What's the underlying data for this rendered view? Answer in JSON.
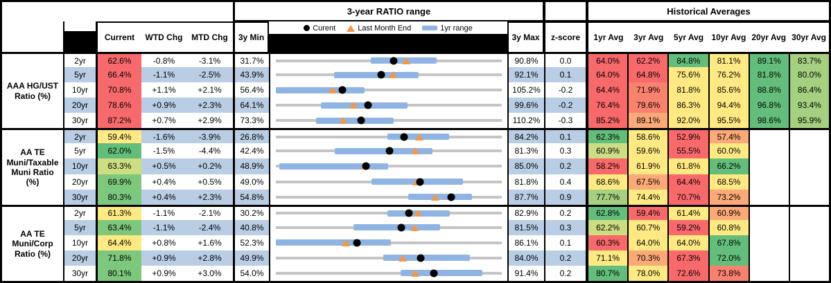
{
  "header": {
    "ratio_range_title": "3-year RATIO range",
    "historical_title": "Historical Averages",
    "legend": {
      "current": "Curent",
      "last_month_end": "Last Month End",
      "one_yr_range": "1yr range"
    },
    "columns": {
      "current": "Current",
      "wtd": "WTD Chg",
      "mtd": "MTD Chg",
      "min": "3y Min",
      "max": "3y Max",
      "zscore": "z-score",
      "avgs": [
        "1yr Avg",
        "3yr Avg",
        "5yr Avg",
        "10yr Avg",
        "20yr Avg",
        "30yr Avg"
      ]
    }
  },
  "colors": {
    "red": "#F8696B",
    "salmon": "#F9826F",
    "orange": "#FBA977",
    "yellow": "#FFE983",
    "yelgreen": "#CDDD82",
    "ltgreen": "#A5D07F",
    "green": "#63BE7B",
    "green2": "#7CC87D",
    "stripe": "#B9CDE4",
    "white": "#FFFFFF",
    "bar_blue": "#8DB4E2",
    "line_gray": "#C4C4C4",
    "marker_orange": "#F79646",
    "marker_black": "#000000"
  },
  "chart_data": {
    "type": "table",
    "title": "3-year RATIO range",
    "legend": [
      "Curent",
      "Last Month End",
      "1yr range"
    ],
    "columns": [
      "Current",
      "WTD Chg",
      "MTD Chg",
      "3y Min",
      "3y Max",
      "z-score",
      "1yr Avg",
      "3yr Avg",
      "5yr Avg",
      "10yr Avg",
      "20yr Avg",
      "30yr Avg"
    ],
    "range_chart_note": "each row is a horizontal range plot scaled from its own 3y Min to 3y Max; black dot = current, orange triangle = last month end, blue bar = 1yr range",
    "groups": [
      {
        "label": "AAA HG/UST\nRatio (%)",
        "rows": [
          {
            "tenor": "2yr",
            "current": "62.6%",
            "cc": "red",
            "wtd": "-0.8%",
            "mtd": "-3.1%",
            "min": "31.7%",
            "max": "90.8%",
            "z": "0.0",
            "avgs": [
              [
                "64.0%",
                "red"
              ],
              [
                "62.2%",
                "red"
              ],
              [
                "84.8%",
                "green"
              ],
              [
                "81.1%",
                "yellow"
              ],
              [
                "89.1%",
                "green"
              ],
              [
                "83.7%",
                "ltgreen"
              ]
            ],
            "range": {
              "min": 31.7,
              "max": 90.8,
              "cur": 62.6,
              "lme": 65.7,
              "bar": [
                56.5,
                73.7
              ]
            }
          },
          {
            "tenor": "5yr",
            "current": "66.4%",
            "cc": "red",
            "wtd": "-1.1%",
            "mtd": "-2.5%",
            "min": "43.9%",
            "max": "92.1%",
            "z": "0.1",
            "avgs": [
              [
                "64.0%",
                "red"
              ],
              [
                "64.8%",
                "red"
              ],
              [
                "75.6%",
                "yellow"
              ],
              [
                "76.2%",
                "yellow"
              ],
              [
                "81.8%",
                "green"
              ],
              [
                "80.0%",
                "ltgreen"
              ]
            ],
            "range": {
              "min": 43.9,
              "max": 92.1,
              "cur": 66.4,
              "lme": 68.9,
              "bar": [
                56.3,
                74.3
              ]
            }
          },
          {
            "tenor": "10yr",
            "current": "70.8%",
            "cc": "red",
            "wtd": "+1.1%",
            "mtd": "+2.1%",
            "min": "56.4%",
            "max": "105.2%",
            "z": "-0.2",
            "avgs": [
              [
                "64.4%",
                "red"
              ],
              [
                "71.9%",
                "salmon"
              ],
              [
                "81.8%",
                "yellow"
              ],
              [
                "85.6%",
                "yellow"
              ],
              [
                "88.8%",
                "green"
              ],
              [
                "86.4%",
                "ltgreen"
              ]
            ],
            "range": {
              "min": 56.4,
              "max": 105.2,
              "cur": 70.8,
              "lme": 68.7,
              "bar": [
                56.4,
                75.5
              ]
            }
          },
          {
            "tenor": "20yr",
            "current": "78.6%",
            "cc": "red",
            "wtd": "+0.9%",
            "mtd": "+2.3%",
            "min": "64.1%",
            "max": "99.6%",
            "z": "-0.2",
            "avgs": [
              [
                "76.4%",
                "red"
              ],
              [
                "79.6%",
                "salmon"
              ],
              [
                "86.3%",
                "yellow"
              ],
              [
                "94.4%",
                "yellow"
              ],
              [
                "96.8%",
                "green"
              ],
              [
                "93.4%",
                "ltgreen"
              ]
            ],
            "range": {
              "min": 64.1,
              "max": 99.6,
              "cur": 78.6,
              "lme": 76.3,
              "bar": [
                71.2,
                84.8
              ]
            }
          },
          {
            "tenor": "30yr",
            "current": "87.2%",
            "cc": "red",
            "wtd": "+0.7%",
            "mtd": "+2.9%",
            "min": "73.3%",
            "max": "110.2%",
            "z": "-0.3",
            "avgs": [
              [
                "85.2%",
                "red"
              ],
              [
                "89.1%",
                "orange"
              ],
              [
                "92.0%",
                "yellow"
              ],
              [
                "95.5%",
                "yellow"
              ],
              [
                "98.6%",
                "green"
              ],
              [
                "95.9%",
                "ltgreen"
              ]
            ],
            "range": {
              "min": 73.3,
              "max": 110.2,
              "cur": 87.2,
              "lme": 84.3,
              "bar": [
                79.9,
                92.5
              ]
            }
          }
        ]
      },
      {
        "label": "AA TE\nMuni/Taxable\nMuni Ratio\n(%)",
        "rows": [
          {
            "tenor": "2yr",
            "current": "59.4%",
            "cc": "yellow",
            "wtd": "-1.6%",
            "mtd": "-3.9%",
            "min": "26.8%",
            "max": "84.2%",
            "z": "0.1",
            "avgs": [
              [
                "62.3%",
                "green"
              ],
              [
                "58.6%",
                "yellow"
              ],
              [
                "52.9%",
                "red"
              ],
              [
                "57.4%",
                "orange"
              ]
            ],
            "range": {
              "min": 26.8,
              "max": 84.2,
              "cur": 59.4,
              "lme": 63.3,
              "bar": [
                55.2,
                70.9
              ]
            }
          },
          {
            "tenor": "5yr",
            "current": "62.0%",
            "cc": "green",
            "wtd": "-1.5%",
            "mtd": "-4.4%",
            "min": "42.4%",
            "max": "81.3%",
            "z": "0.3",
            "avgs": [
              [
                "60.9%",
                "yelgreen"
              ],
              [
                "59.6%",
                "yellow"
              ],
              [
                "55.5%",
                "red"
              ],
              [
                "60.0%",
                "yellow"
              ]
            ],
            "range": {
              "min": 42.4,
              "max": 81.3,
              "cur": 62.0,
              "lme": 66.4,
              "bar": [
                52.5,
                69.4
              ]
            }
          },
          {
            "tenor": "10yr",
            "current": "63.3%",
            "cc": "yelgreen",
            "wtd": "+0.5%",
            "mtd": "+0.2%",
            "min": "48.9%",
            "max": "85.0%",
            "z": "0.2",
            "avgs": [
              [
                "58.2%",
                "red"
              ],
              [
                "61.9%",
                "yellow"
              ],
              [
                "61.8%",
                "yellow"
              ],
              [
                "66.2%",
                "green"
              ]
            ],
            "range": {
              "min": 48.9,
              "max": 85.0,
              "cur": 63.3,
              "lme": 63.1,
              "bar": [
                49.4,
                66.8
              ]
            }
          },
          {
            "tenor": "20yr",
            "current": "69.9%",
            "cc": "green2",
            "wtd": "+0.4%",
            "mtd": "+0.5%",
            "min": "49.0%",
            "max": "81.8%",
            "z": "0.4",
            "avgs": [
              [
                "68.6%",
                "yellow"
              ],
              [
                "67.5%",
                "orange"
              ],
              [
                "64.4%",
                "red"
              ],
              [
                "68.5%",
                "yellow"
              ]
            ],
            "range": {
              "min": 49.0,
              "max": 81.8,
              "cur": 69.9,
              "lme": 69.4,
              "bar": [
                62.9,
                76.2
              ]
            }
          },
          {
            "tenor": "30yr",
            "current": "80.3%",
            "cc": "green2",
            "wtd": "+0.4%",
            "mtd": "+2.3%",
            "min": "54.8%",
            "max": "87.7%",
            "z": "0.9",
            "avgs": [
              [
                "77.7%",
                "ltgreen"
              ],
              [
                "74.4%",
                "yellow"
              ],
              [
                "70.7%",
                "red"
              ],
              [
                "73.2%",
                "orange"
              ]
            ],
            "range": {
              "min": 54.8,
              "max": 87.7,
              "cur": 80.3,
              "lme": 78.0,
              "bar": [
                74.1,
                83.4
              ]
            }
          }
        ]
      },
      {
        "label": "AA TE\nMuni/Corp\nRatio (%)",
        "rows": [
          {
            "tenor": "2yr",
            "current": "61.3%",
            "cc": "yellow",
            "wtd": "-1.1%",
            "mtd": "-2.1%",
            "min": "30.2%",
            "max": "82.9%",
            "z": "0.2",
            "avgs": [
              [
                "62.8%",
                "green"
              ],
              [
                "59.4%",
                "red"
              ],
              [
                "61.4%",
                "yellow"
              ],
              [
                "60.9%",
                "orange"
              ]
            ],
            "range": {
              "min": 30.2,
              "max": 82.9,
              "cur": 61.3,
              "lme": 63.4,
              "bar": [
                56.3,
                70.7
              ]
            }
          },
          {
            "tenor": "5yr",
            "current": "63.4%",
            "cc": "green2",
            "wtd": "-1.1%",
            "mtd": "-2.4%",
            "min": "40.8%",
            "max": "81.5%",
            "z": "0.3",
            "avgs": [
              [
                "62.2%",
                "yelgreen"
              ],
              [
                "60.7%",
                "yellow"
              ],
              [
                "59.2%",
                "red"
              ],
              [
                "60.8%",
                "yellow"
              ]
            ],
            "range": {
              "min": 40.8,
              "max": 81.5,
              "cur": 63.4,
              "lme": 65.8,
              "bar": [
                54.8,
                70.4
              ]
            }
          },
          {
            "tenor": "10yr",
            "current": "64.4%",
            "cc": "yellow",
            "wtd": "+0.8%",
            "mtd": "+1.6%",
            "min": "52.3%",
            "max": "86.1%",
            "z": "0.1",
            "avgs": [
              [
                "60.3%",
                "red"
              ],
              [
                "64.0%",
                "yellow"
              ],
              [
                "64.0%",
                "yellow"
              ],
              [
                "67.8%",
                "green"
              ]
            ],
            "range": {
              "min": 52.3,
              "max": 86.1,
              "cur": 64.4,
              "lme": 62.8,
              "bar": [
                52.3,
                69.5
              ]
            }
          },
          {
            "tenor": "20yr",
            "current": "71.8%",
            "cc": "green2",
            "wtd": "+0.9%",
            "mtd": "+2.8%",
            "min": "49.9%",
            "max": "84.0%",
            "z": "0.2",
            "avgs": [
              [
                "71.1%",
                "yellow"
              ],
              [
                "70.3%",
                "orange"
              ],
              [
                "67.3%",
                "red"
              ],
              [
                "72.0%",
                "green"
              ]
            ],
            "range": {
              "min": 49.9,
              "max": 84.0,
              "cur": 71.8,
              "lme": 69.0,
              "bar": [
                66.1,
                79.2
              ]
            }
          },
          {
            "tenor": "30yr",
            "current": "80.1%",
            "cc": "green2",
            "wtd": "+0.9%",
            "mtd": "+3.0%",
            "min": "54.0%",
            "max": "91.4%",
            "z": "0.2",
            "avgs": [
              [
                "80.7%",
                "green"
              ],
              [
                "78.0%",
                "yellow"
              ],
              [
                "72.6%",
                "red"
              ],
              [
                "73.8%",
                "salmon"
              ]
            ],
            "range": {
              "min": 54.0,
              "max": 91.4,
              "cur": 80.1,
              "lme": 77.1,
              "bar": [
                74.6,
                88.2
              ]
            }
          }
        ]
      }
    ]
  }
}
